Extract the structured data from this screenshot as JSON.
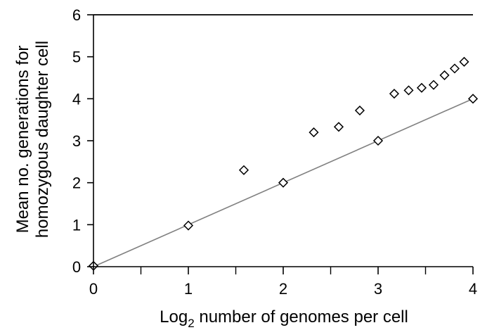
{
  "chart_data": {
    "type": "scatter",
    "title": "",
    "xlabel": {
      "prefix": "Log",
      "subscript": "2",
      "suffix": " number of genomes per cell"
    },
    "ylabel": {
      "line1": "Mean no. generations for",
      "line2": "homozygous daughter cell"
    },
    "xlim": [
      0,
      4
    ],
    "ylim": [
      0,
      6
    ],
    "xticks": [
      0,
      1,
      2,
      3,
      4
    ],
    "xtick_labels": [
      "0",
      "1",
      "2",
      "3",
      "4"
    ],
    "yticks": [
      0,
      1,
      2,
      3,
      4,
      5,
      6
    ],
    "ytick_labels": [
      "0",
      "1",
      "2",
      "3",
      "4",
      "5",
      "6"
    ],
    "grid": false,
    "marker": "open-diamond",
    "series": [
      {
        "x": [
          0,
          1,
          1.585,
          2,
          2.322,
          2.585,
          2.807,
          3,
          3.17,
          3.322,
          3.459,
          3.585,
          3.7,
          3.807,
          3.907,
          4
        ],
        "y": [
          0.02,
          0.98,
          2.3,
          2.0,
          3.2,
          3.33,
          3.72,
          3.0,
          4.12,
          4.2,
          4.26,
          4.33,
          4.56,
          4.72,
          4.88,
          4.0
        ]
      }
    ],
    "reference_line": {
      "x": [
        0,
        4
      ],
      "y": [
        0,
        4
      ],
      "color": "#808080"
    },
    "colors": {
      "markers": "#000000",
      "axes": "#000000",
      "line": "#808080"
    }
  }
}
